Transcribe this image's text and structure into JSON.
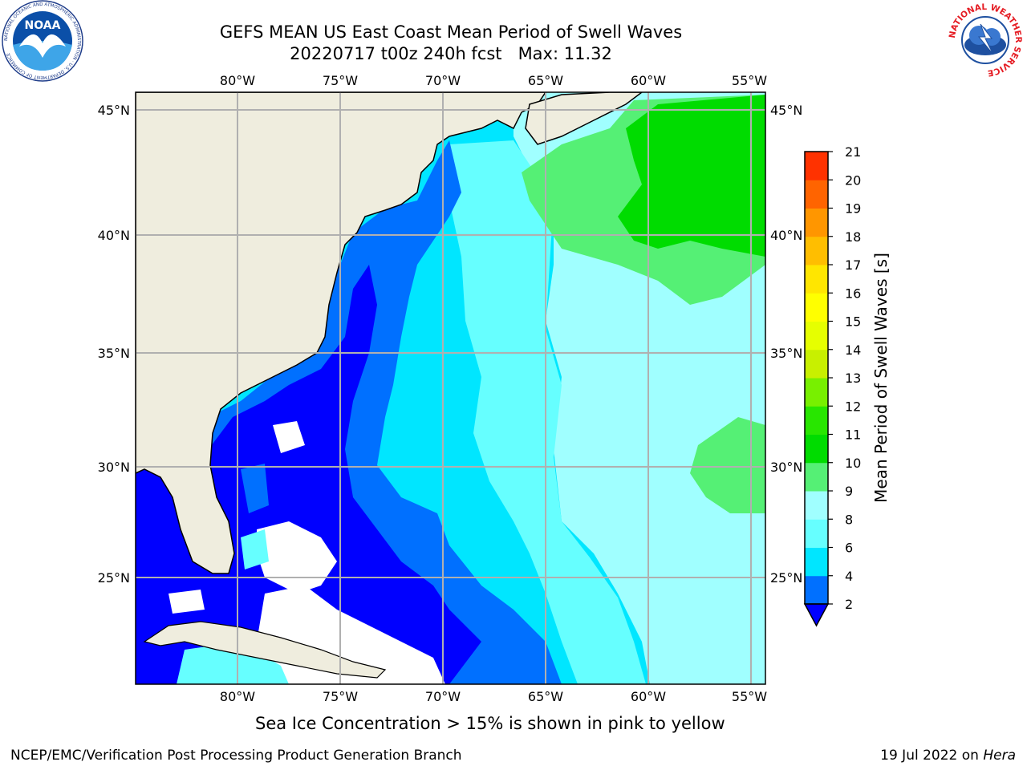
{
  "title": {
    "line1": "GEFS MEAN US East Coast Mean Period of Swell Waves",
    "line2": "20220717 t00z 240h fcst   Max: 11.32"
  },
  "caption": "Sea Ice Concentration > 15% is shown in pink to yellow",
  "footer": {
    "left": "NCEP/EMC/Verification Post Processing Product Generation Branch",
    "date": "19 Jul 2022 on ",
    "host": "Hera"
  },
  "logos": {
    "noaa_text": "NOAA",
    "noaa_ring": "NATIONAL OCEANIC AND ATMOSPHERIC ADMINISTRATION · U.S. DEPARTMENT OF COMMERCE",
    "nws_ring": "NATIONAL WEATHER SERVICE"
  },
  "map": {
    "lon_ticks": [
      "80°W",
      "75°W",
      "70°W",
      "65°W",
      "60°W",
      "55°W"
    ],
    "lat_ticks_left": [
      "45°N",
      "40°N",
      "35°N",
      "30°N",
      "25°N"
    ],
    "lat_ticks_right": [
      "45°N",
      "40°N",
      "35°N",
      "30°N",
      "25°N"
    ],
    "lon_range": [
      -85,
      -54.5
    ],
    "lat_range": [
      20.3,
      46.2
    ],
    "colors": {
      "land": "#efedde",
      "grid": "#b0b0b0",
      "no_data": "#ffffff"
    }
  },
  "colorbar": {
    "label": "Mean Period of Swell Waves [s]",
    "tick_labels": [
      "2",
      "4",
      "6",
      "8",
      "9",
      "10",
      "11",
      "12",
      "13",
      "14",
      "15",
      "16",
      "17",
      "18",
      "19",
      "20",
      "21"
    ],
    "levels": [
      2,
      4,
      6,
      8,
      9,
      10,
      11,
      12,
      13,
      14,
      15,
      16,
      17,
      18,
      19,
      20,
      21
    ],
    "colors": [
      "#0070ff",
      "#00e6ff",
      "#66ffff",
      "#a0ffff",
      "#55f075",
      "#00dc00",
      "#28e600",
      "#78f000",
      "#c8f000",
      "#e6ff00",
      "#ffff00",
      "#ffe600",
      "#ffbe00",
      "#ff9600",
      "#ff6400",
      "#ff3200",
      "#ff0000"
    ],
    "extend_color": "#0000ff"
  }
}
